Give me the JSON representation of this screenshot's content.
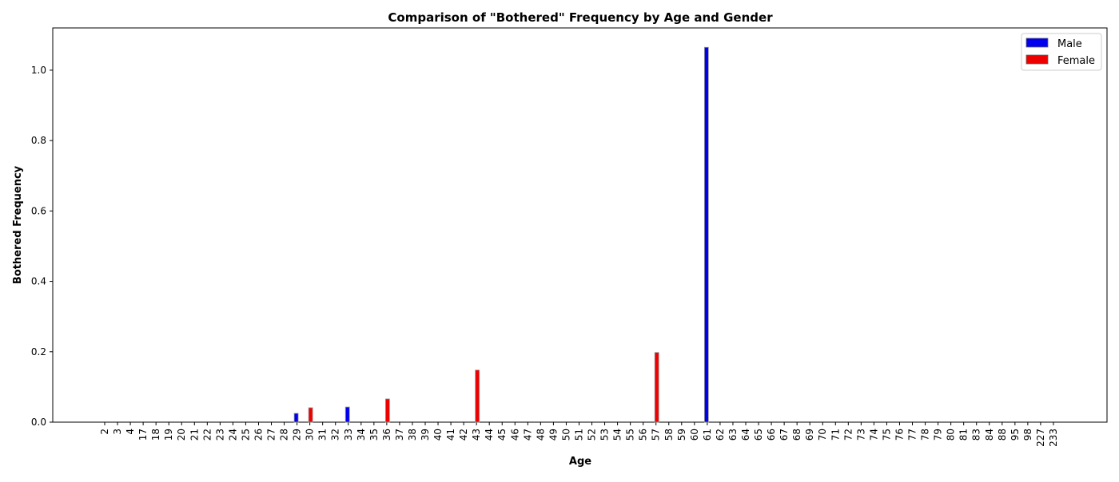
{
  "chart_data": {
    "type": "bar",
    "title": "Comparison of \"Bothered\" Frequency by Age and Gender",
    "xlabel": "Age",
    "ylabel": "Bothered Frequency",
    "ylim": [
      0,
      1.12
    ],
    "yticks": [
      "0.0",
      "0.2",
      "0.4",
      "0.6",
      "0.8",
      "1.0"
    ],
    "legend_position": "top-right",
    "grid": false,
    "categories": [
      "2",
      "3",
      "4",
      "17",
      "18",
      "19",
      "20",
      "21",
      "22",
      "23",
      "24",
      "25",
      "26",
      "27",
      "28",
      "29",
      "30",
      "31",
      "32",
      "33",
      "34",
      "35",
      "36",
      "37",
      "38",
      "39",
      "40",
      "41",
      "42",
      "43",
      "44",
      "45",
      "46",
      "47",
      "48",
      "49",
      "50",
      "51",
      "52",
      "53",
      "54",
      "55",
      "56",
      "57",
      "58",
      "59",
      "60",
      "61",
      "62",
      "63",
      "64",
      "65",
      "66",
      "67",
      "68",
      "69",
      "70",
      "71",
      "72",
      "73",
      "74",
      "75",
      "76",
      "77",
      "78",
      "79",
      "80",
      "81",
      "83",
      "84",
      "88",
      "95",
      "98",
      "227",
      "233"
    ],
    "series": [
      {
        "name": "Male",
        "color": "#0000ee",
        "values": {
          "29": 0.025,
          "33": 0.043,
          "61": 1.065
        }
      },
      {
        "name": "Female",
        "color": "#ee0000",
        "values": {
          "30": 0.041,
          "36": 0.066,
          "43": 0.148,
          "57": 0.198
        }
      }
    ]
  }
}
